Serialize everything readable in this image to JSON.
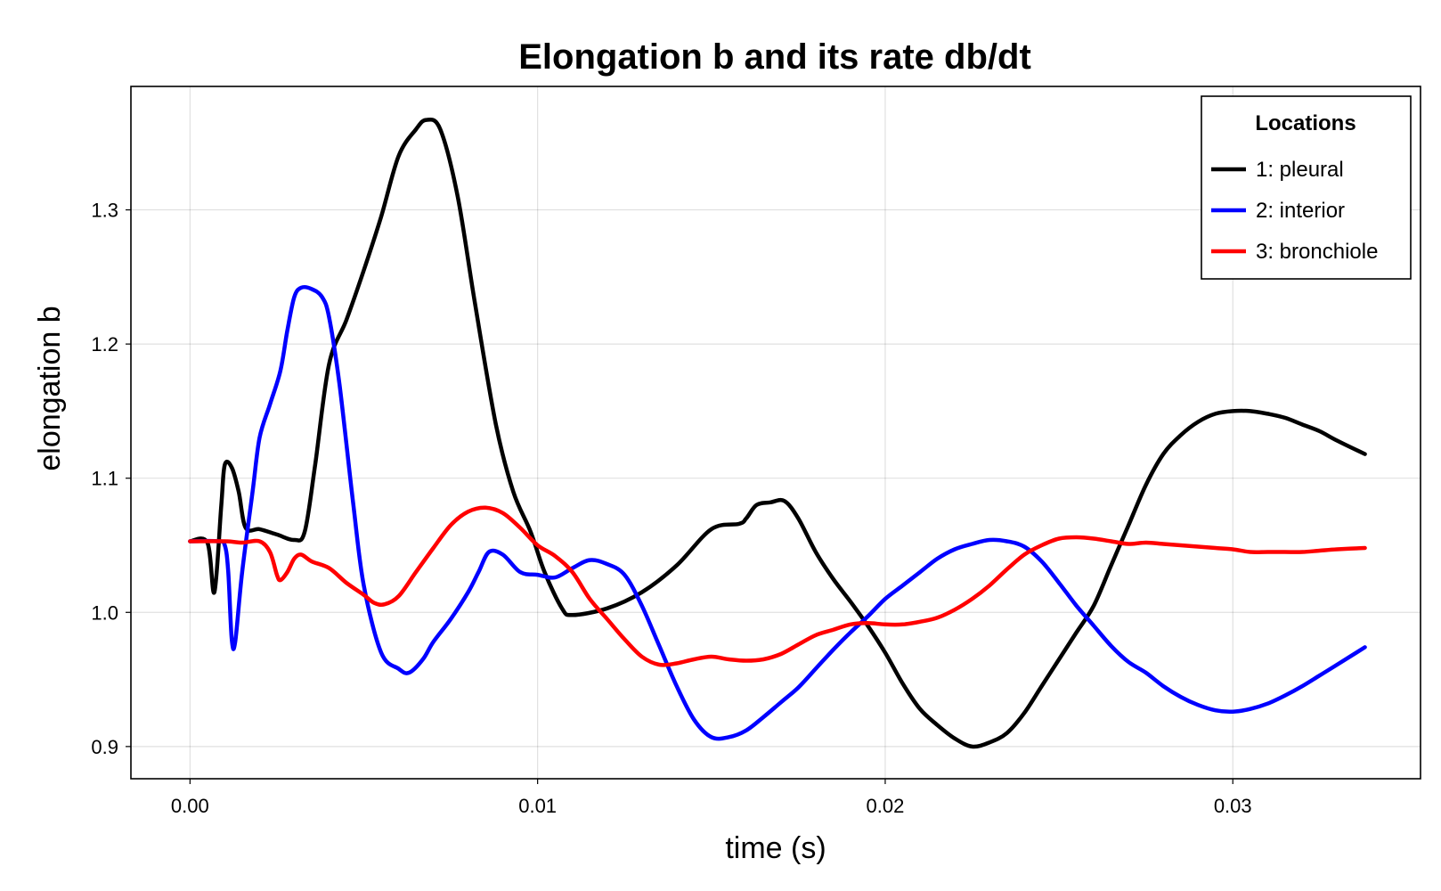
{
  "chart_data": {
    "type": "line",
    "title": "Elongation b and its rate db/dt",
    "xlabel": "time (s)",
    "ylabel": "elongation b",
    "xlim": [
      -0.0017,
      0.0354
    ],
    "ylim": [
      0.876,
      1.392
    ],
    "xticks": [
      0.0,
      0.01,
      0.02,
      0.03
    ],
    "xtick_labels": [
      "0.00",
      "0.01",
      "0.02",
      "0.03"
    ],
    "yticks": [
      0.9,
      1.0,
      1.1,
      1.2,
      1.3
    ],
    "ytick_labels": [
      "0.9",
      "1.0",
      "1.1",
      "1.2",
      "1.3"
    ],
    "grid": true,
    "legend": {
      "title": "Locations",
      "position": "top-right"
    },
    "series": [
      {
        "name": "1: pleural",
        "color": "#000000",
        "points": [
          [
            0.0,
            1.053
          ],
          [
            0.0005,
            1.052
          ],
          [
            0.0007,
            1.015
          ],
          [
            0.0009,
            1.08
          ],
          [
            0.001,
            1.11
          ],
          [
            0.0012,
            1.108
          ],
          [
            0.0014,
            1.09
          ],
          [
            0.0016,
            1.063
          ],
          [
            0.002,
            1.062
          ],
          [
            0.0025,
            1.058
          ],
          [
            0.003,
            1.054
          ],
          [
            0.0033,
            1.06
          ],
          [
            0.0036,
            1.11
          ],
          [
            0.004,
            1.185
          ],
          [
            0.0045,
            1.218
          ],
          [
            0.005,
            1.255
          ],
          [
            0.0055,
            1.295
          ],
          [
            0.006,
            1.34
          ],
          [
            0.0065,
            1.36
          ],
          [
            0.0068,
            1.367
          ],
          [
            0.0072,
            1.36
          ],
          [
            0.0077,
            1.31
          ],
          [
            0.0082,
            1.23
          ],
          [
            0.0088,
            1.14
          ],
          [
            0.0093,
            1.09
          ],
          [
            0.0098,
            1.06
          ],
          [
            0.0102,
            1.03
          ],
          [
            0.0107,
            1.003
          ],
          [
            0.011,
            0.998
          ],
          [
            0.012,
            1.003
          ],
          [
            0.013,
            1.015
          ],
          [
            0.014,
            1.035
          ],
          [
            0.015,
            1.062
          ],
          [
            0.0158,
            1.066
          ],
          [
            0.016,
            1.07
          ],
          [
            0.0163,
            1.08
          ],
          [
            0.0167,
            1.082
          ],
          [
            0.0171,
            1.083
          ],
          [
            0.0175,
            1.07
          ],
          [
            0.018,
            1.045
          ],
          [
            0.0185,
            1.025
          ],
          [
            0.019,
            1.008
          ],
          [
            0.0195,
            0.99
          ],
          [
            0.02,
            0.97
          ],
          [
            0.0205,
            0.947
          ],
          [
            0.021,
            0.928
          ],
          [
            0.0215,
            0.916
          ],
          [
            0.022,
            0.906
          ],
          [
            0.0225,
            0.9
          ],
          [
            0.023,
            0.903
          ],
          [
            0.0235,
            0.91
          ],
          [
            0.024,
            0.925
          ],
          [
            0.0245,
            0.945
          ],
          [
            0.025,
            0.965
          ],
          [
            0.0255,
            0.985
          ],
          [
            0.026,
            1.005
          ],
          [
            0.0265,
            1.035
          ],
          [
            0.027,
            1.065
          ],
          [
            0.0275,
            1.095
          ],
          [
            0.028,
            1.118
          ],
          [
            0.0285,
            1.132
          ],
          [
            0.029,
            1.142
          ],
          [
            0.0295,
            1.148
          ],
          [
            0.03,
            1.15
          ],
          [
            0.0305,
            1.15
          ],
          [
            0.031,
            1.148
          ],
          [
            0.0315,
            1.145
          ],
          [
            0.032,
            1.14
          ],
          [
            0.0325,
            1.135
          ],
          [
            0.033,
            1.128
          ],
          [
            0.0338,
            1.118
          ]
        ]
      },
      {
        "name": "2: interior",
        "color": "#0000ff",
        "points": [
          [
            0.0,
            1.053
          ],
          [
            0.0008,
            1.053
          ],
          [
            0.001,
            1.05
          ],
          [
            0.0011,
            1.03
          ],
          [
            0.0012,
            0.98
          ],
          [
            0.0013,
            0.978
          ],
          [
            0.0015,
            1.03
          ],
          [
            0.0018,
            1.09
          ],
          [
            0.002,
            1.13
          ],
          [
            0.0023,
            1.155
          ],
          [
            0.0026,
            1.18
          ],
          [
            0.0028,
            1.21
          ],
          [
            0.003,
            1.235
          ],
          [
            0.0032,
            1.242
          ],
          [
            0.0035,
            1.241
          ],
          [
            0.0038,
            1.235
          ],
          [
            0.004,
            1.22
          ],
          [
            0.0043,
            1.17
          ],
          [
            0.0047,
            1.08
          ],
          [
            0.005,
            1.02
          ],
          [
            0.0055,
            0.97
          ],
          [
            0.006,
            0.958
          ],
          [
            0.0063,
            0.955
          ],
          [
            0.0067,
            0.965
          ],
          [
            0.007,
            0.978
          ],
          [
            0.0075,
            0.995
          ],
          [
            0.008,
            1.015
          ],
          [
            0.0083,
            1.03
          ],
          [
            0.0086,
            1.045
          ],
          [
            0.009,
            1.043
          ],
          [
            0.0095,
            1.03
          ],
          [
            0.01,
            1.028
          ],
          [
            0.0105,
            1.026
          ],
          [
            0.011,
            1.033
          ],
          [
            0.0115,
            1.039
          ],
          [
            0.012,
            1.036
          ],
          [
            0.0125,
            1.028
          ],
          [
            0.013,
            1.005
          ],
          [
            0.0135,
            0.975
          ],
          [
            0.014,
            0.945
          ],
          [
            0.0145,
            0.92
          ],
          [
            0.015,
            0.907
          ],
          [
            0.0155,
            0.907
          ],
          [
            0.016,
            0.912
          ],
          [
            0.0165,
            0.922
          ],
          [
            0.017,
            0.933
          ],
          [
            0.0175,
            0.944
          ],
          [
            0.018,
            0.958
          ],
          [
            0.0185,
            0.972
          ],
          [
            0.019,
            0.985
          ],
          [
            0.0195,
            0.997
          ],
          [
            0.02,
            1.01
          ],
          [
            0.0205,
            1.02
          ],
          [
            0.021,
            1.03
          ],
          [
            0.0215,
            1.04
          ],
          [
            0.022,
            1.047
          ],
          [
            0.0225,
            1.051
          ],
          [
            0.023,
            1.054
          ],
          [
            0.0235,
            1.053
          ],
          [
            0.024,
            1.049
          ],
          [
            0.0245,
            1.038
          ],
          [
            0.025,
            1.022
          ],
          [
            0.0255,
            1.005
          ],
          [
            0.026,
            0.99
          ],
          [
            0.0265,
            0.975
          ],
          [
            0.027,
            0.963
          ],
          [
            0.0275,
            0.955
          ],
          [
            0.028,
            0.945
          ],
          [
            0.0285,
            0.937
          ],
          [
            0.029,
            0.931
          ],
          [
            0.0295,
            0.927
          ],
          [
            0.03,
            0.926
          ],
          [
            0.0305,
            0.928
          ],
          [
            0.031,
            0.932
          ],
          [
            0.0315,
            0.938
          ],
          [
            0.032,
            0.945
          ],
          [
            0.0325,
            0.953
          ],
          [
            0.033,
            0.961
          ],
          [
            0.0338,
            0.974
          ]
        ]
      },
      {
        "name": "3: bronchiole",
        "color": "#ff0000",
        "points": [
          [
            0.0,
            1.053
          ],
          [
            0.001,
            1.053
          ],
          [
            0.0015,
            1.052
          ],
          [
            0.002,
            1.053
          ],
          [
            0.0023,
            1.045
          ],
          [
            0.0025,
            1.028
          ],
          [
            0.0026,
            1.024
          ],
          [
            0.0028,
            1.03
          ],
          [
            0.003,
            1.04
          ],
          [
            0.0032,
            1.043
          ],
          [
            0.0035,
            1.038
          ],
          [
            0.004,
            1.033
          ],
          [
            0.0045,
            1.022
          ],
          [
            0.005,
            1.013
          ],
          [
            0.0053,
            1.007
          ],
          [
            0.0056,
            1.006
          ],
          [
            0.006,
            1.012
          ],
          [
            0.0065,
            1.03
          ],
          [
            0.007,
            1.048
          ],
          [
            0.0075,
            1.065
          ],
          [
            0.008,
            1.075
          ],
          [
            0.0085,
            1.078
          ],
          [
            0.009,
            1.074
          ],
          [
            0.0095,
            1.063
          ],
          [
            0.01,
            1.05
          ],
          [
            0.0105,
            1.042
          ],
          [
            0.011,
            1.03
          ],
          [
            0.0115,
            1.01
          ],
          [
            0.012,
            0.995
          ],
          [
            0.0125,
            0.98
          ],
          [
            0.013,
            0.967
          ],
          [
            0.0135,
            0.961
          ],
          [
            0.014,
            0.962
          ],
          [
            0.0145,
            0.965
          ],
          [
            0.015,
            0.967
          ],
          [
            0.0155,
            0.965
          ],
          [
            0.016,
            0.964
          ],
          [
            0.0165,
            0.965
          ],
          [
            0.017,
            0.969
          ],
          [
            0.0175,
            0.976
          ],
          [
            0.018,
            0.983
          ],
          [
            0.0185,
            0.987
          ],
          [
            0.019,
            0.991
          ],
          [
            0.0195,
            0.992
          ],
          [
            0.02,
            0.991
          ],
          [
            0.0205,
            0.991
          ],
          [
            0.021,
            0.993
          ],
          [
            0.0215,
            0.996
          ],
          [
            0.022,
            1.002
          ],
          [
            0.0225,
            1.01
          ],
          [
            0.023,
            1.02
          ],
          [
            0.0235,
            1.032
          ],
          [
            0.024,
            1.043
          ],
          [
            0.0245,
            1.05
          ],
          [
            0.025,
            1.055
          ],
          [
            0.0255,
            1.056
          ],
          [
            0.026,
            1.055
          ],
          [
            0.0265,
            1.053
          ],
          [
            0.027,
            1.051
          ],
          [
            0.0275,
            1.052
          ],
          [
            0.028,
            1.051
          ],
          [
            0.0285,
            1.05
          ],
          [
            0.029,
            1.049
          ],
          [
            0.0295,
            1.048
          ],
          [
            0.03,
            1.047
          ],
          [
            0.0305,
            1.045
          ],
          [
            0.031,
            1.045
          ],
          [
            0.0315,
            1.045
          ],
          [
            0.032,
            1.045
          ],
          [
            0.0325,
            1.046
          ],
          [
            0.033,
            1.047
          ],
          [
            0.0338,
            1.048
          ]
        ]
      }
    ]
  }
}
